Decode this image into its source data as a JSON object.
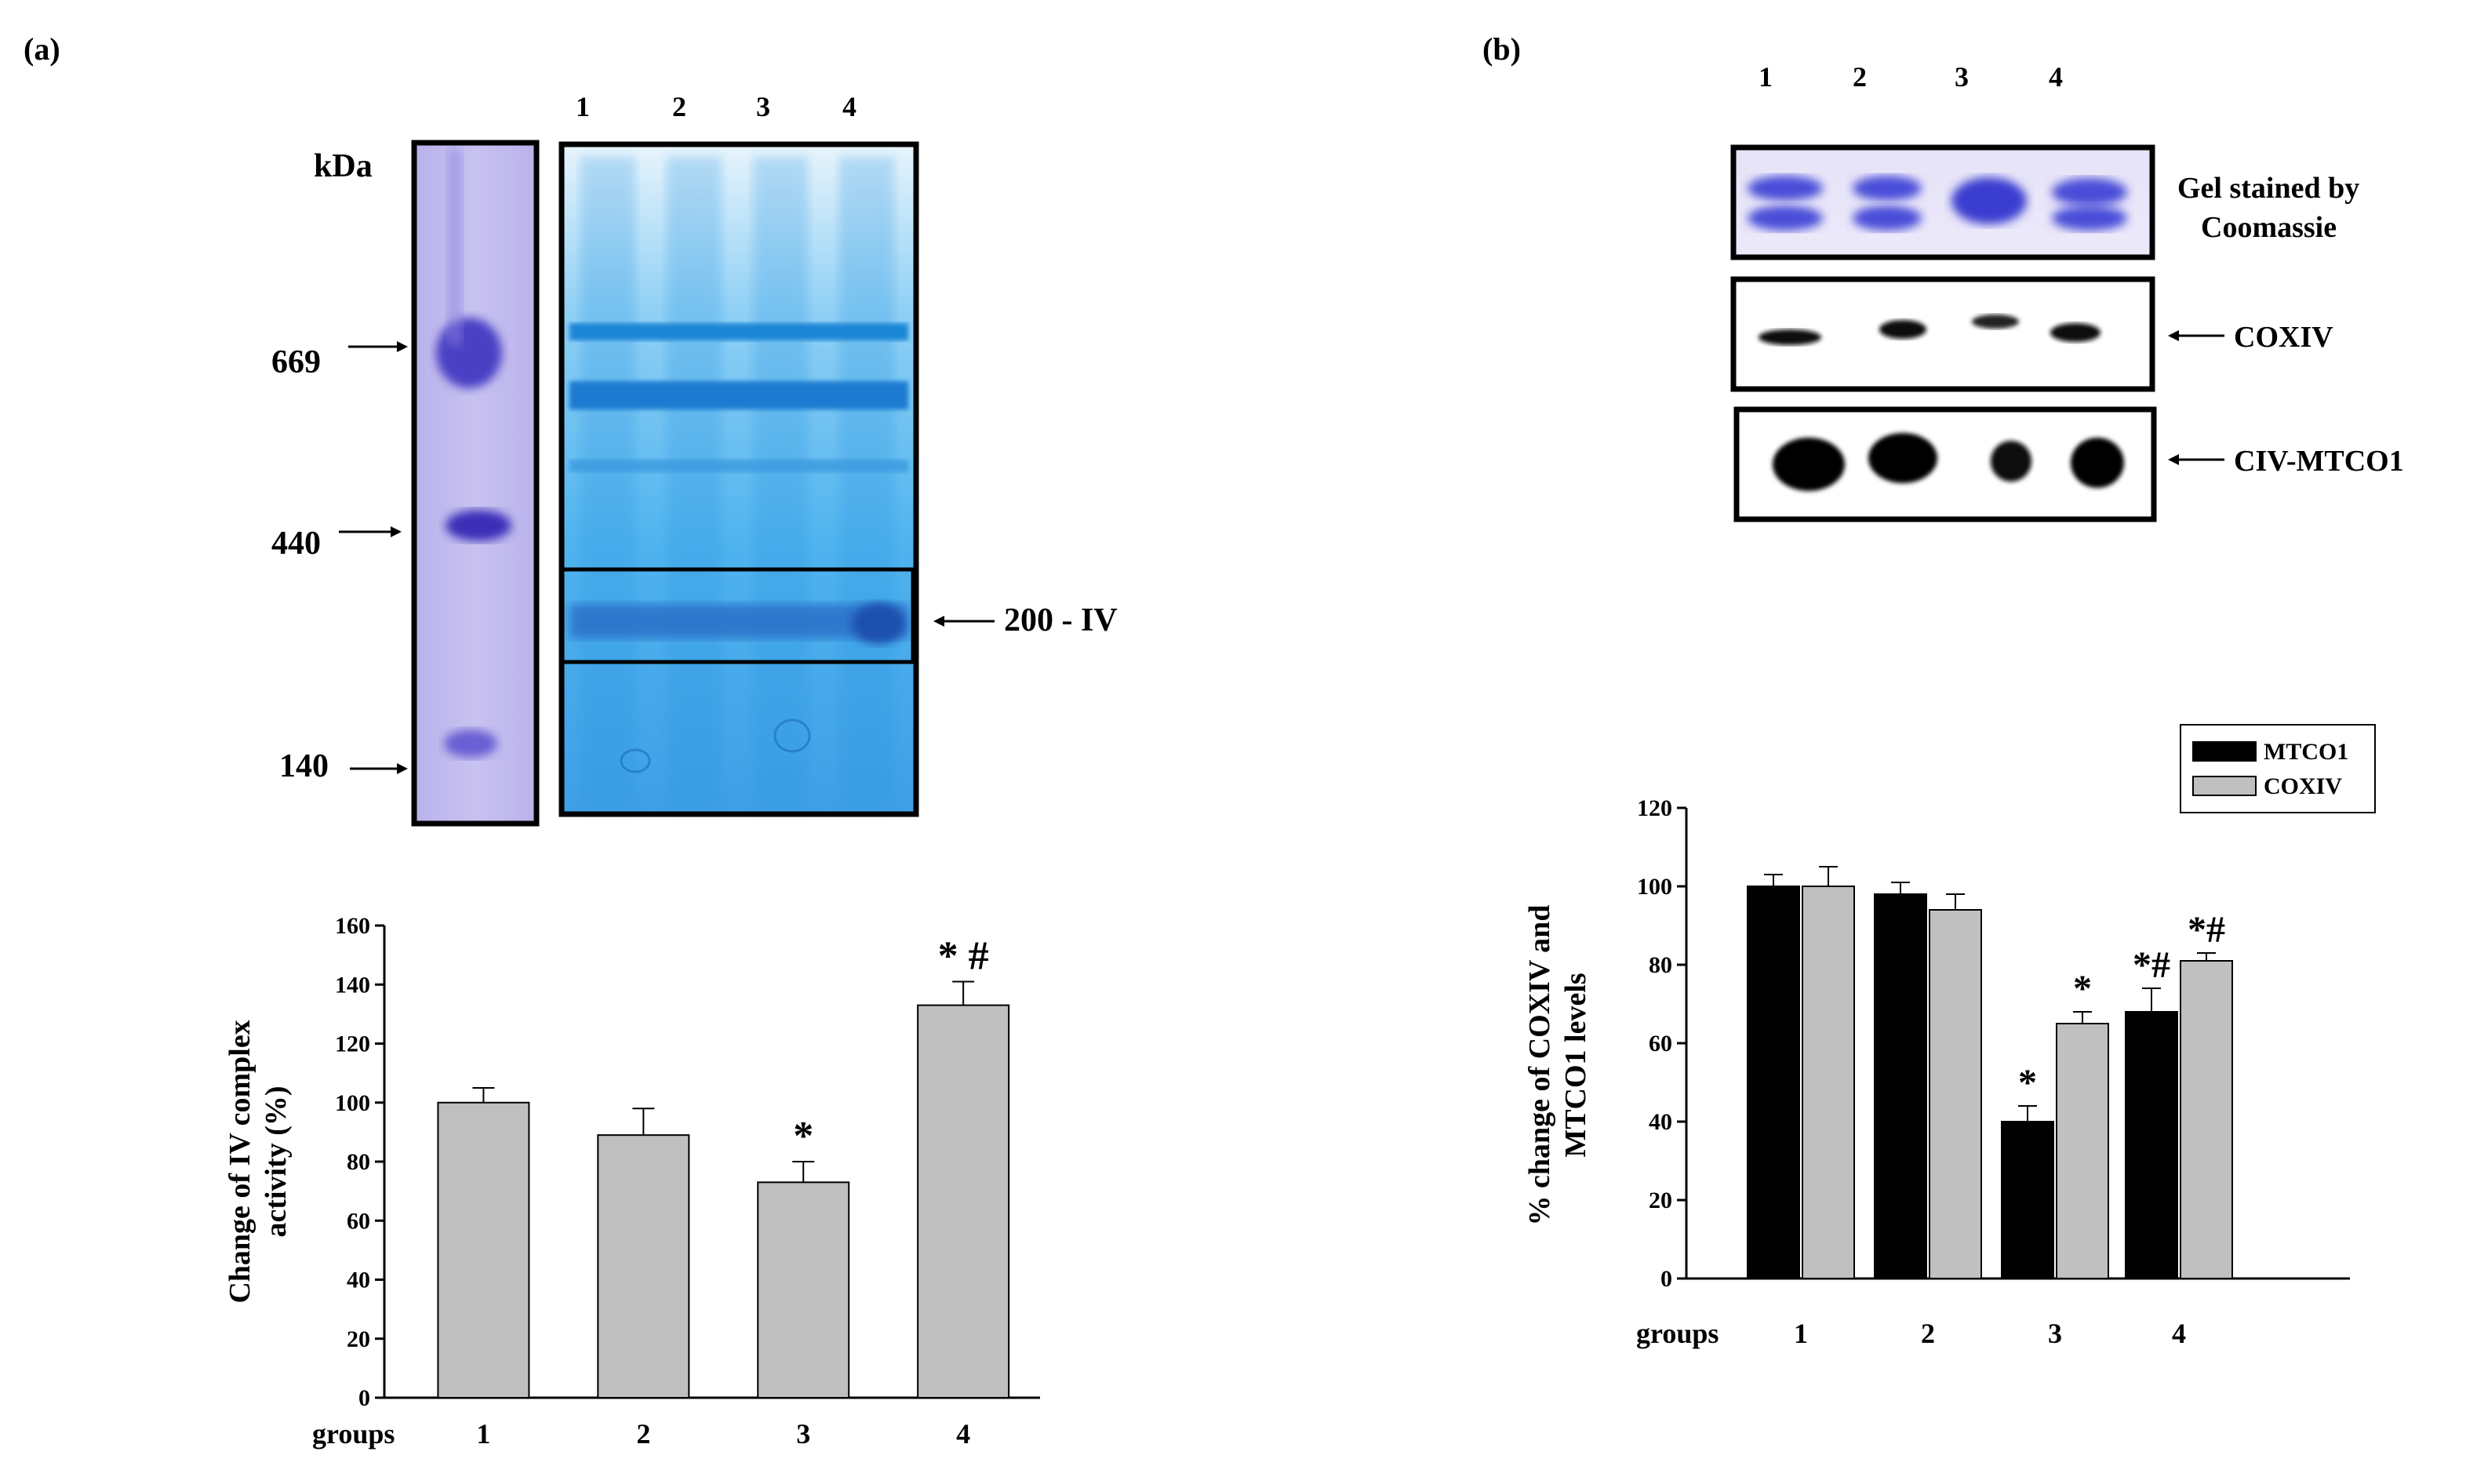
{
  "panel_a": {
    "label": "(a)",
    "gel": {
      "marker_unit": "kDa",
      "markers": [
        "669",
        "440",
        "140"
      ],
      "lanes": [
        "1",
        "2",
        "3",
        "4"
      ],
      "band_label": "200 - IV",
      "colors": {
        "marker_stain": "#4a3fc4",
        "gel_bg": "#3fa8ec",
        "band": "#1f6fd0"
      }
    }
  },
  "panel_b": {
    "label": "(b)",
    "lanes": [
      "1",
      "2",
      "3",
      "4"
    ],
    "blots": {
      "coomassie_label_1": "Gel stained by",
      "coomassie_label_2": "Coomassie",
      "coxiv_label": "COXIV",
      "mtco1_label": "CIV-MTCO1"
    }
  },
  "chart_data": [
    {
      "type": "bar",
      "ylabel": "Change of IV complex activity (%)",
      "ylabel_lines": [
        "Change of IV complex",
        "activity (%)"
      ],
      "xlabel": "groups",
      "categories": [
        "1",
        "2",
        "3",
        "4"
      ],
      "values": [
        100,
        89,
        73,
        133
      ],
      "errors": [
        5,
        9,
        7,
        8
      ],
      "annotations": [
        "",
        "",
        "*",
        "* #"
      ],
      "ylim": [
        0,
        160
      ],
      "yticks": [
        "0",
        "20",
        "40",
        "60",
        "80",
        "100",
        "120",
        "140",
        "160"
      ],
      "color": "#bfbfbf"
    },
    {
      "type": "bar",
      "ylabel": "% change of COXIV and MTCO1 levels",
      "ylabel_lines": [
        "% change of COXIV and",
        "MTCO1 levels"
      ],
      "xlabel": "groups",
      "categories": [
        "1",
        "2",
        "3",
        "4"
      ],
      "series": [
        {
          "name": "MTCO1",
          "color": "#000000",
          "values": [
            100,
            98,
            40,
            68
          ],
          "errors": [
            3,
            3,
            4,
            6
          ],
          "annotations": [
            "",
            "",
            "*",
            "*#"
          ]
        },
        {
          "name": "COXIV",
          "color": "#c0c0c0",
          "values": [
            100,
            94,
            65,
            81
          ],
          "errors": [
            5,
            4,
            3,
            2
          ],
          "annotations": [
            "",
            "",
            "*",
            "*#"
          ]
        }
      ],
      "legend": "top-right",
      "ylim": [
        0,
        120
      ],
      "yticks": [
        "0",
        "20",
        "40",
        "60",
        "80",
        "100",
        "120"
      ]
    }
  ]
}
